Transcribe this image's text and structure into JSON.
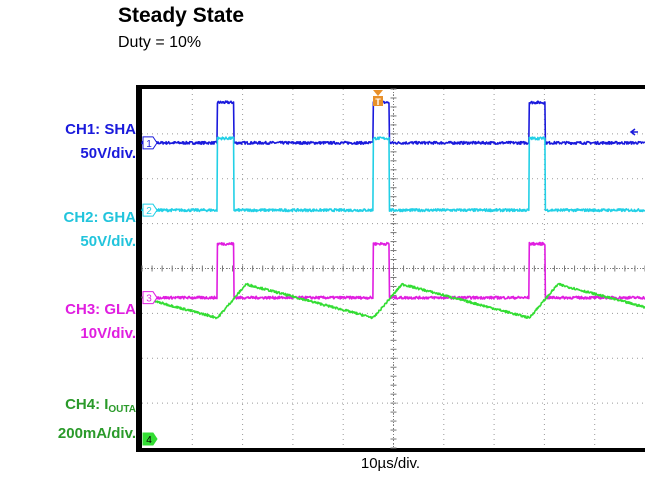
{
  "title": "Steady State",
  "subtitle": "Duty = 10%",
  "time_scale": "10µs/div.",
  "trigger_marker": "T",
  "channels": [
    {
      "id": "CH1",
      "label": "CH1: SHA",
      "scale": "50V/div.",
      "color": "#1a1adc",
      "marker": "1"
    },
    {
      "id": "CH2",
      "label": "CH2: GHA",
      "scale": "50V/div.",
      "color": "#22d0e6",
      "marker": "2"
    },
    {
      "id": "CH3",
      "label": "CH3: GLA",
      "scale": "10V/div.",
      "color": "#e01ee0",
      "marker": "3"
    },
    {
      "id": "CH4",
      "label_prefix": "CH4: I",
      "label_sub": "OUTA",
      "scale": "200mA/div.",
      "color": "#33dd33",
      "marker": "4"
    }
  ],
  "chart_data": {
    "type": "line",
    "title": "Steady State",
    "subtitle": "Duty = 10%",
    "xlabel": "10µs/div.",
    "grid": true,
    "x_divisions": 10,
    "y_divisions": 8,
    "xlim_div": [
      0,
      10
    ],
    "ylim_div": [
      -4,
      4
    ],
    "duty_cycle_percent": 10,
    "pulse_starts_div": [
      1.5,
      4.6,
      7.7
    ],
    "pulse_width_div": 0.32,
    "series": [
      {
        "name": "CH1: SHA",
        "scale": "50V/div.",
        "low_div": 2.8,
        "high_div": 3.7
      },
      {
        "name": "CH2: GHA",
        "scale": "50V/div.",
        "low_div": 1.3,
        "high_div": 2.9
      },
      {
        "name": "CH3: GLA",
        "scale": "10V/div.",
        "low_div": -0.65,
        "high_div": 0.55
      },
      {
        "name": "CH4: IOUTA",
        "scale": "200mA/div.",
        "min_div": -1.1,
        "max_div": -0.35
      }
    ]
  }
}
